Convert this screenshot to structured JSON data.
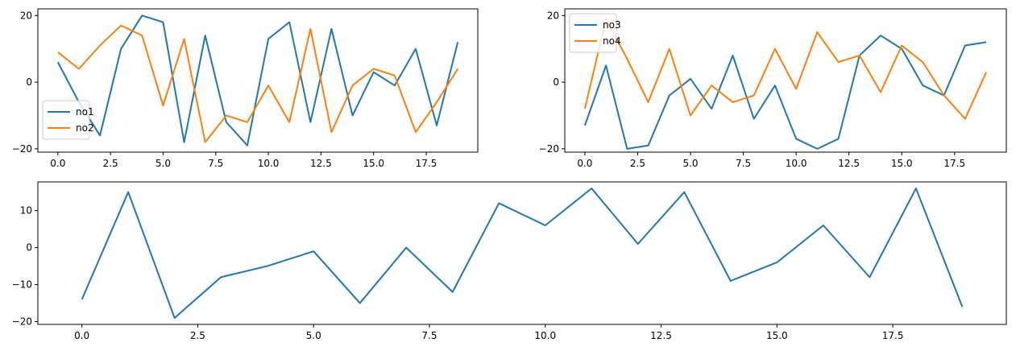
{
  "chart_data": [
    {
      "type": "line",
      "title": "",
      "xlabel": "",
      "ylabel": "",
      "xlim": [
        -0.95,
        19.95
      ],
      "ylim": [
        -21,
        22
      ],
      "xticks": [
        0,
        2.5,
        5,
        7.5,
        10,
        12.5,
        15,
        17.5
      ],
      "xtick_labels": [
        "0.0",
        "2.5",
        "5.0",
        "7.5",
        "10.0",
        "12.5",
        "15.0",
        "17.5"
      ],
      "yticks": [
        -20,
        0,
        20
      ],
      "ytick_labels": [
        "−20",
        "0",
        "20"
      ],
      "legend": {
        "placement": "lower-left"
      },
      "x": [
        0,
        1,
        2,
        3,
        4,
        5,
        6,
        7,
        8,
        9,
        10,
        11,
        12,
        13,
        14,
        15,
        16,
        17,
        18,
        19
      ],
      "series": [
        {
          "name": "no1",
          "color": "#1f77b4",
          "values": [
            6,
            -6,
            -16,
            10,
            20,
            18,
            -18,
            14,
            -12,
            -19,
            13,
            18,
            -12,
            16,
            -10,
            3,
            -1,
            10,
            -13,
            12
          ]
        },
        {
          "name": "no2",
          "color": "#ff7f0e",
          "values": [
            9,
            4,
            11,
            17,
            14,
            -7,
            13,
            -18,
            -10,
            -12,
            -1,
            -12,
            16,
            -15,
            -1,
            4,
            2,
            -15,
            -6,
            4
          ]
        }
      ]
    },
    {
      "type": "line",
      "title": "",
      "xlabel": "",
      "ylabel": "",
      "xlim": [
        -0.95,
        19.95
      ],
      "ylim": [
        -21,
        22
      ],
      "xticks": [
        0,
        2.5,
        5,
        7.5,
        10,
        12.5,
        15,
        17.5
      ],
      "xtick_labels": [
        "0.0",
        "2.5",
        "5.0",
        "7.5",
        "10.0",
        "12.5",
        "15.0",
        "17.5"
      ],
      "yticks": [
        -20,
        0,
        20
      ],
      "ytick_labels": [
        "−20",
        "0",
        "20"
      ],
      "legend": {
        "placement": "upper-left"
      },
      "x": [
        0,
        1,
        2,
        3,
        4,
        5,
        6,
        7,
        8,
        9,
        10,
        11,
        12,
        13,
        14,
        15,
        16,
        17,
        18,
        19
      ],
      "series": [
        {
          "name": "no3",
          "color": "#1f77b4",
          "values": [
            -13,
            5,
            -20,
            -19,
            -4,
            1,
            -8,
            8,
            -11,
            -1,
            -17,
            -20,
            -17,
            8,
            14,
            10,
            -1,
            -4,
            11,
            12
          ]
        },
        {
          "name": "no4",
          "color": "#ff7f0e",
          "values": [
            -8,
            19,
            7,
            -6,
            10,
            -10,
            -1,
            -6,
            -4,
            10,
            -2,
            15,
            6,
            8,
            -3,
            11,
            6,
            -4,
            -11,
            3
          ]
        }
      ]
    },
    {
      "type": "line",
      "title": "",
      "xlabel": "",
      "ylabel": "",
      "xlim": [
        -0.95,
        19.95
      ],
      "ylim": [
        -20.75,
        17.75
      ],
      "xticks": [
        0,
        2.5,
        5,
        7.5,
        10,
        12.5,
        15,
        17.5
      ],
      "xtick_labels": [
        "0.0",
        "2.5",
        "5.0",
        "7.5",
        "10.0",
        "12.5",
        "15.0",
        "17.5"
      ],
      "yticks": [
        -20,
        -10,
        0,
        10
      ],
      "ytick_labels": [
        "−20",
        "−10",
        "0",
        "10"
      ],
      "x": [
        0,
        1,
        2,
        3,
        4,
        5,
        6,
        7,
        8,
        9,
        10,
        11,
        12,
        13,
        14,
        15,
        16,
        17,
        18,
        19
      ],
      "series": [
        {
          "color": "#1f77b4",
          "values": [
            -14,
            15,
            -19,
            -8,
            -5,
            -1,
            -15,
            0,
            -12,
            12,
            6,
            16,
            1,
            15,
            -9,
            -4,
            6,
            -8,
            16,
            -16
          ]
        }
      ]
    }
  ]
}
